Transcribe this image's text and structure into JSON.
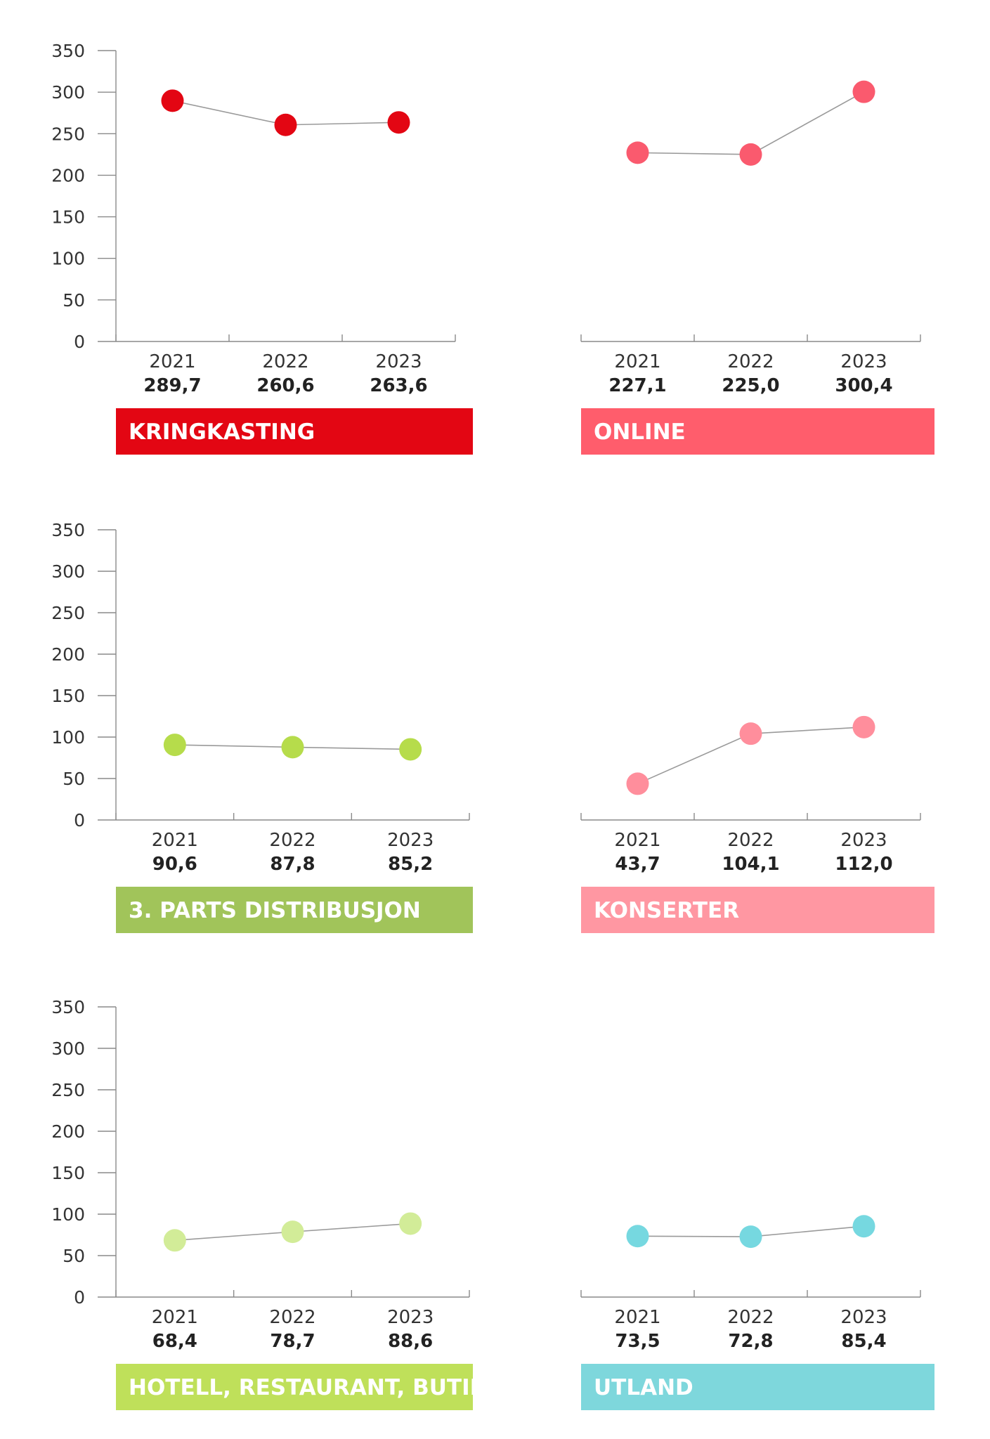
{
  "chart_data": [
    {
      "type": "line",
      "title": "KRINGKASTING",
      "color": "#e30613",
      "banner_color": "#e30613",
      "categories": [
        "2021",
        "2022",
        "2023"
      ],
      "values": [
        289.7,
        260.6,
        263.6
      ],
      "value_labels": [
        "289,7",
        "260,6",
        "263,6"
      ],
      "yticks": [
        0,
        50,
        100,
        150,
        200,
        250,
        300,
        350
      ],
      "ylim": [
        0,
        350
      ],
      "show_y_axis": true
    },
    {
      "type": "line",
      "title": "ONLINE",
      "color": "#fa5a6e",
      "banner_color": "#ff5d6c",
      "categories": [
        "2021",
        "2022",
        "2023"
      ],
      "values": [
        227.1,
        225.0,
        300.4
      ],
      "value_labels": [
        "227,1",
        "225,0",
        "300,4"
      ],
      "yticks": [
        0,
        50,
        100,
        150,
        200,
        250,
        300,
        350
      ],
      "ylim": [
        0,
        350
      ],
      "show_y_axis": false
    },
    {
      "type": "line",
      "title": "3. PARTS DISTRIBUSJON",
      "color": "#b6dc4b",
      "banner_color": "#a1c45a",
      "categories": [
        "2021",
        "2022",
        "2023"
      ],
      "values": [
        90.6,
        87.8,
        85.2
      ],
      "value_labels": [
        "90,6",
        "87,8",
        "85,2"
      ],
      "yticks": [
        0,
        50,
        100,
        150,
        200,
        250,
        300,
        350
      ],
      "ylim": [
        0,
        350
      ],
      "show_y_axis": true
    },
    {
      "type": "line",
      "title": "KONSERTER",
      "color": "#ff8e9c",
      "banner_color": "#ff97a2",
      "categories": [
        "2021",
        "2022",
        "2023"
      ],
      "values": [
        43.7,
        104.1,
        112.0
      ],
      "value_labels": [
        "43,7",
        "104,1",
        "112,0"
      ],
      "yticks": [
        0,
        50,
        100,
        150,
        200,
        250,
        300,
        350
      ],
      "ylim": [
        0,
        350
      ],
      "show_y_axis": false
    },
    {
      "type": "line",
      "title": "HOTELL, RESTAURANT, BUTIKK",
      "color": "#d2ec98",
      "banner_color": "#bfe05a",
      "categories": [
        "2021",
        "2022",
        "2023"
      ],
      "values": [
        68.4,
        78.7,
        88.6
      ],
      "value_labels": [
        "68,4",
        "78,7",
        "88,6"
      ],
      "yticks": [
        0,
        50,
        100,
        150,
        200,
        250,
        300,
        350
      ],
      "ylim": [
        0,
        350
      ],
      "show_y_axis": true
    },
    {
      "type": "line",
      "title": "UTLAND",
      "color": "#76d8e0",
      "banner_color": "#7ed7dc",
      "categories": [
        "2021",
        "2022",
        "2023"
      ],
      "values": [
        73.5,
        72.8,
        85.4
      ],
      "value_labels": [
        "73,5",
        "72,8",
        "85,4"
      ],
      "yticks": [
        0,
        50,
        100,
        150,
        200,
        250,
        300,
        350
      ],
      "ylim": [
        0,
        350
      ],
      "show_y_axis": false
    }
  ]
}
